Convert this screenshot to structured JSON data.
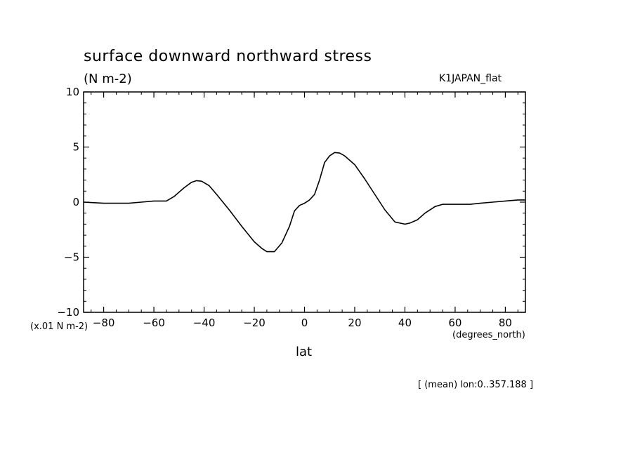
{
  "figure": {
    "title": "surface downward northward stress",
    "units": "(N m-2)",
    "experiment": "K1JAPAN_flat",
    "scale_note": "(x.01 N m-2)",
    "x_units": "(degrees_north)",
    "x_label": "lat",
    "annotation": "[ (mean) lon:0..357.188 ]"
  },
  "chart_data": {
    "type": "line",
    "title": "surface downward northward stress",
    "xlabel": "lat",
    "ylabel": "(N m-2)",
    "xlim": [
      -88,
      88
    ],
    "ylim": [
      -10,
      10
    ],
    "x_ticks": [
      -80,
      -60,
      -40,
      -20,
      0,
      20,
      40,
      60,
      80
    ],
    "y_ticks": [
      -10,
      -5,
      0,
      5,
      10
    ],
    "grid": false,
    "series": [
      {
        "name": "K1JAPAN_flat",
        "x": [
          -88,
          -80,
          -75,
          -70,
          -65,
          -60,
          -55,
          -52,
          -48,
          -45,
          -43,
          -41,
          -38,
          -35,
          -30,
          -25,
          -20,
          -17,
          -15,
          -13,
          -12,
          -9,
          -6,
          -4,
          -2,
          0,
          2,
          4,
          6,
          8,
          10,
          12,
          14,
          16,
          20,
          24,
          28,
          32,
          36,
          40,
          42,
          45,
          48,
          52,
          55,
          58,
          62,
          66,
          70,
          75,
          80,
          85,
          88
        ],
        "y": [
          0,
          -0.1,
          -0.1,
          -0.1,
          0,
          0.1,
          0.1,
          0.5,
          1.3,
          1.8,
          1.95,
          1.9,
          1.5,
          0.7,
          -0.7,
          -2.2,
          -3.6,
          -4.2,
          -4.5,
          -4.5,
          -4.5,
          -3.7,
          -2.2,
          -0.8,
          -0.3,
          -0.1,
          0.2,
          0.7,
          2.0,
          3.6,
          4.2,
          4.5,
          4.45,
          4.2,
          3.4,
          2.1,
          0.7,
          -0.7,
          -1.8,
          -2.0,
          -1.9,
          -1.6,
          -1.0,
          -0.4,
          -0.2,
          -0.2,
          -0.2,
          -0.2,
          -0.1,
          0,
          0.1,
          0.2,
          0.2
        ]
      }
    ]
  }
}
